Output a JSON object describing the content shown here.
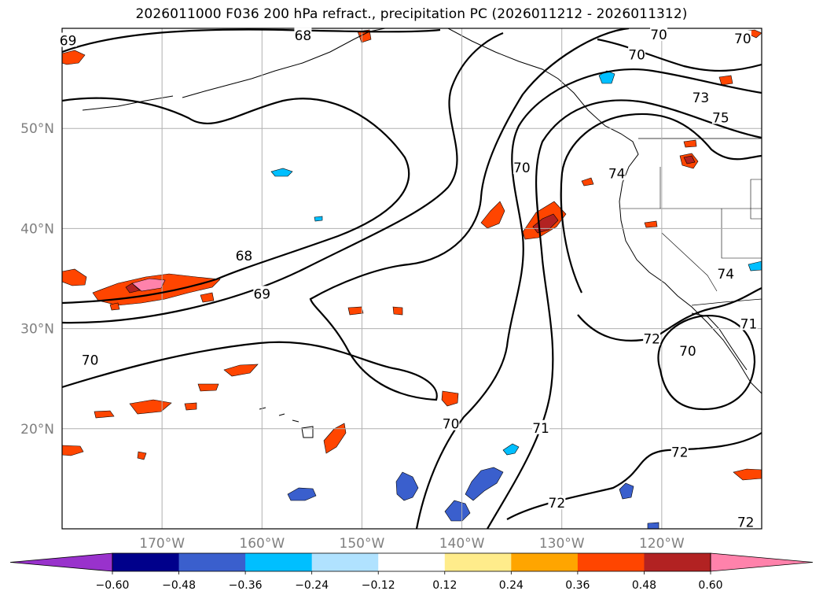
{
  "title": "2026011000 F036 200 hPa refract., precipitation PC (2026011212 - 2026011312)",
  "map": {
    "projection": "plate-carree",
    "lon_range": [
      -180,
      -110
    ],
    "lat_range": [
      10,
      60
    ],
    "gridlines": true,
    "lat_ticks": [
      {
        "value": 50,
        "label": "50°N"
      },
      {
        "value": 40,
        "label": "40°N"
      },
      {
        "value": 30,
        "label": "30°N"
      },
      {
        "value": 20,
        "label": "20°N"
      }
    ],
    "lon_ticks": [
      {
        "value": -170,
        "label": "170°W"
      },
      {
        "value": -160,
        "label": "160°W"
      },
      {
        "value": -150,
        "label": "150°W"
      },
      {
        "value": -140,
        "label": "140°W"
      },
      {
        "value": -130,
        "label": "130°W"
      },
      {
        "value": -120,
        "label": "120°W"
      }
    ],
    "contour_labels": [
      {
        "text": "69",
        "lon": -179.4,
        "lat": 58.7
      },
      {
        "text": "68",
        "lon": -155.9,
        "lat": 59.2
      },
      {
        "text": "70",
        "lon": -120.3,
        "lat": 59.3
      },
      {
        "text": "70",
        "lon": -122.5,
        "lat": 57.3
      },
      {
        "text": "70",
        "lon": -111.9,
        "lat": 58.9
      },
      {
        "text": "73",
        "lon": -116.1,
        "lat": 53.0
      },
      {
        "text": "75",
        "lon": -114.1,
        "lat": 51.0
      },
      {
        "text": "70",
        "lon": -134.0,
        "lat": 46.0
      },
      {
        "text": "74",
        "lon": -124.5,
        "lat": 45.4
      },
      {
        "text": "68",
        "lon": -161.8,
        "lat": 37.2
      },
      {
        "text": "69",
        "lon": -160.0,
        "lat": 33.4
      },
      {
        "text": "74",
        "lon": -113.6,
        "lat": 35.4
      },
      {
        "text": "71",
        "lon": -111.3,
        "lat": 30.4
      },
      {
        "text": "72",
        "lon": -121.0,
        "lat": 28.9
      },
      {
        "text": "70",
        "lon": -117.4,
        "lat": 27.7
      },
      {
        "text": "70",
        "lon": -177.2,
        "lat": 26.8
      },
      {
        "text": "70",
        "lon": -141.1,
        "lat": 20.4
      },
      {
        "text": "71",
        "lon": -132.1,
        "lat": 20.0
      },
      {
        "text": "72",
        "lon": -118.2,
        "lat": 17.6
      },
      {
        "text": "72",
        "lon": -130.5,
        "lat": 12.5
      },
      {
        "text": "72",
        "lon": -111.6,
        "lat": 10.6
      }
    ]
  },
  "colorbar": {
    "ticks": [
      "−0.60",
      "−0.48",
      "−0.36",
      "−0.24",
      "−0.12",
      "0.12",
      "0.24",
      "0.36",
      "0.48",
      "0.60"
    ],
    "colors": [
      "#9932cc",
      "#00008b",
      "#3a5fcd",
      "#00bfff",
      "#b0e2ff",
      "#ffffff",
      "#ffec8b",
      "#ffa500",
      "#ff4500",
      "#b22222",
      "#ff82ab"
    ],
    "extend": "both"
  }
}
